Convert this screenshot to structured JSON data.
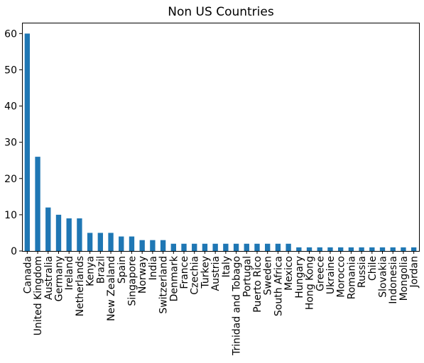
{
  "chart_data": {
    "type": "bar",
    "title": "Non US Countries",
    "xlabel": "",
    "ylabel": "",
    "ylim": [
      0,
      63
    ],
    "yticks": [
      0,
      10,
      20,
      30,
      40,
      50,
      60
    ],
    "grid": false,
    "legend": "none",
    "bar_color": "#1f77b4",
    "categories": [
      "Canada",
      "United Kingdom",
      "Australia",
      "Germany",
      "Ireland",
      "Netherlands",
      "Kenya",
      "Brazil",
      "New Zealand",
      "Spain",
      "Singapore",
      "Norway",
      "India",
      "Switzerland",
      "Denmark",
      "France",
      "Czechia",
      "Turkey",
      "Austria",
      "Italy",
      "Trinidad and Tobago",
      "Portugal",
      "Puerto Rico",
      "Sweden",
      "South Africa",
      "Mexico",
      "Hungary",
      "Hong Kong",
      "Greece",
      "Ukraine",
      "Morocco",
      "Romania",
      "Russia",
      "Chile",
      "Slovakia",
      "Indonesia",
      "Mongolia",
      "Jordan"
    ],
    "values": [
      60,
      26,
      12,
      10,
      9,
      9,
      5,
      5,
      5,
      4,
      4,
      3,
      3,
      3,
      2,
      2,
      2,
      2,
      2,
      2,
      2,
      2,
      2,
      2,
      2,
      2,
      1,
      1,
      1,
      1,
      1,
      1,
      1,
      1,
      1,
      1,
      1,
      1
    ]
  }
}
